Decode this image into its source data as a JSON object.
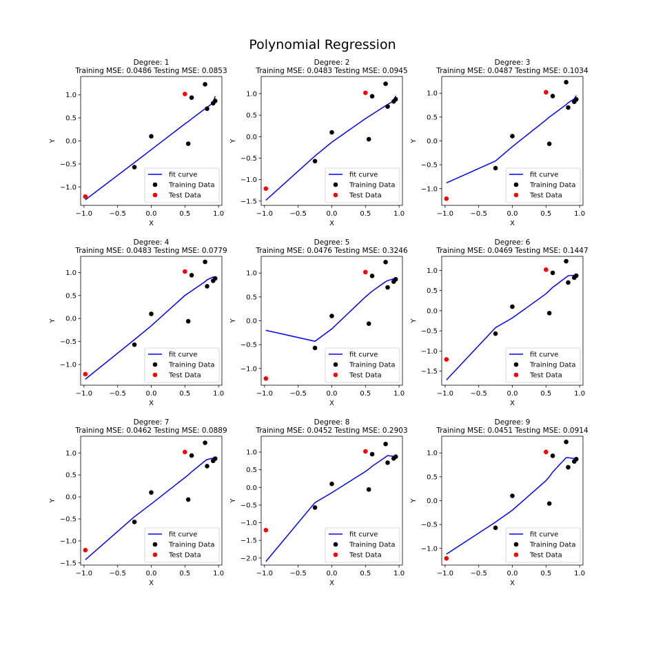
{
  "figure": {
    "title": "Polynomial Regression"
  },
  "chart_data": [
    {
      "type": "scatter",
      "degree_label": "Degree: 1",
      "mse_label": "Training MSE: 0.0486 Testing MSE: 0.0853",
      "xlabel": "X",
      "ylabel": "Y",
      "xlim": [
        -1.05,
        1.05
      ],
      "ylim": [
        -1.4,
        1.4
      ],
      "xticks": [
        -1.0,
        -0.5,
        0.0,
        0.5,
        1.0
      ],
      "yticks": [
        -1.0,
        -0.5,
        0.0,
        0.5,
        1.0
      ],
      "fit_curve": {
        "x": [
          -0.98,
          -0.25,
          0.0,
          0.5,
          0.55,
          0.6,
          0.8,
          0.83,
          0.92,
          0.95
        ],
        "y": [
          -1.28,
          -0.47,
          -0.19,
          0.37,
          0.42,
          0.48,
          0.7,
          0.73,
          0.83,
          0.97
        ]
      }
    },
    {
      "type": "scatter",
      "degree_label": "Degree: 2",
      "mse_label": "Training MSE: 0.0483 Testing MSE: 0.0945",
      "xlabel": "X",
      "ylabel": "Y",
      "xlim": [
        -1.05,
        1.05
      ],
      "ylim": [
        -1.6,
        1.4
      ],
      "xticks": [
        -1.0,
        -0.5,
        0.0,
        0.5,
        1.0
      ],
      "yticks": [
        -1.5,
        -1.0,
        -0.5,
        0.0,
        0.5,
        1.0
      ],
      "fit_curve": {
        "x": [
          -0.98,
          -0.25,
          0.0,
          0.5,
          0.55,
          0.6,
          0.8,
          0.83,
          0.92,
          0.95
        ],
        "y": [
          -1.48,
          -0.45,
          -0.13,
          0.42,
          0.47,
          0.52,
          0.72,
          0.75,
          0.83,
          0.95
        ]
      }
    },
    {
      "type": "scatter",
      "degree_label": "Degree: 3",
      "mse_label": "Training MSE: 0.0487 Testing MSE: 0.1034",
      "xlabel": "X",
      "ylabel": "Y",
      "xlim": [
        -1.05,
        1.05
      ],
      "ylim": [
        -1.35,
        1.35
      ],
      "xticks": [
        -1.0,
        -0.5,
        0.0,
        0.5,
        1.0
      ],
      "yticks": [
        -1.0,
        -0.5,
        0.0,
        0.5,
        1.0
      ],
      "fit_curve": {
        "x": [
          -0.98,
          -0.25,
          0.0,
          0.5,
          0.55,
          0.6,
          0.8,
          0.83,
          0.92,
          0.95
        ],
        "y": [
          -0.88,
          -0.42,
          -0.12,
          0.44,
          0.5,
          0.55,
          0.76,
          0.8,
          0.88,
          0.95
        ]
      }
    },
    {
      "type": "scatter",
      "degree_label": "Degree: 4",
      "mse_label": "Training MSE: 0.0483 Testing MSE: 0.0779",
      "xlabel": "X",
      "ylabel": "Y",
      "xlim": [
        -1.05,
        1.05
      ],
      "ylim": [
        -1.45,
        1.35
      ],
      "xticks": [
        -1.0,
        -0.5,
        0.0,
        0.5,
        1.0
      ],
      "yticks": [
        -1.0,
        -0.5,
        0.0,
        0.5,
        1.0
      ],
      "fit_curve": {
        "x": [
          -0.98,
          -0.25,
          0.0,
          0.5,
          0.55,
          0.6,
          0.8,
          0.83,
          0.92,
          0.95
        ],
        "y": [
          -1.32,
          -0.46,
          -0.16,
          0.5,
          0.55,
          0.6,
          0.8,
          0.84,
          0.9,
          0.9
        ]
      }
    },
    {
      "type": "scatter",
      "degree_label": "Degree: 5",
      "mse_label": "Training MSE: 0.0476 Testing MSE: 0.3246",
      "xlabel": "X",
      "ylabel": "Y",
      "xlim": [
        -1.05,
        1.05
      ],
      "ylim": [
        -1.35,
        1.35
      ],
      "xticks": [
        -1.0,
        -0.5,
        0.0,
        0.5,
        1.0
      ],
      "yticks": [
        -1.0,
        -0.5,
        0.0,
        0.5,
        1.0
      ],
      "fit_curve": {
        "x": [
          -0.98,
          -0.25,
          0.0,
          0.5,
          0.55,
          0.6,
          0.8,
          0.83,
          0.92,
          0.95
        ],
        "y": [
          -0.2,
          -0.43,
          -0.17,
          0.5,
          0.56,
          0.62,
          0.82,
          0.84,
          0.88,
          0.88
        ]
      }
    },
    {
      "type": "scatter",
      "degree_label": "Degree: 6",
      "mse_label": "Training MSE: 0.0469 Testing MSE: 0.1447",
      "xlabel": "X",
      "ylabel": "Y",
      "xlim": [
        -1.05,
        1.05
      ],
      "ylim": [
        -1.85,
        1.35
      ],
      "xticks": [
        -1.0,
        -0.5,
        0.0,
        0.5,
        1.0
      ],
      "yticks": [
        -1.5,
        -1.0,
        -0.5,
        0.0,
        0.5,
        1.0
      ],
      "fit_curve": {
        "x": [
          -0.98,
          -0.25,
          0.0,
          0.5,
          0.55,
          0.6,
          0.8,
          0.83,
          0.92,
          0.95
        ],
        "y": [
          -1.72,
          -0.42,
          -0.18,
          0.42,
          0.5,
          0.58,
          0.83,
          0.87,
          0.88,
          0.86
        ]
      }
    },
    {
      "type": "scatter",
      "degree_label": "Degree: 7",
      "mse_label": "Training MSE: 0.0462 Testing MSE: 0.0889",
      "xlabel": "X",
      "ylabel": "Y",
      "xlim": [
        -1.05,
        1.05
      ],
      "ylim": [
        -1.55,
        1.38
      ],
      "xticks": [
        -1.0,
        -0.5,
        0.0,
        0.5,
        1.0
      ],
      "yticks": [
        -1.5,
        -1.0,
        -0.5,
        0.0,
        0.5,
        1.0
      ],
      "fit_curve": {
        "x": [
          -0.98,
          -0.25,
          0.0,
          0.5,
          0.55,
          0.6,
          0.8,
          0.83,
          0.92,
          0.95
        ],
        "y": [
          -1.43,
          -0.45,
          -0.16,
          0.44,
          0.5,
          0.57,
          0.82,
          0.85,
          0.88,
          0.88
        ]
      }
    },
    {
      "type": "scatter",
      "degree_label": "Degree: 8",
      "mse_label": "Training MSE: 0.0452 Testing MSE: 0.2903",
      "xlabel": "X",
      "ylabel": "Y",
      "xlim": [
        -1.05,
        1.05
      ],
      "ylim": [
        -2.2,
        1.45
      ],
      "xticks": [
        -1.0,
        -0.5,
        0.0,
        0.5,
        1.0
      ],
      "yticks": [
        -2.0,
        -1.5,
        -1.0,
        -0.5,
        0.0,
        0.5,
        1.0
      ],
      "fit_curve": {
        "x": [
          -0.98,
          -0.25,
          0.0,
          0.5,
          0.55,
          0.6,
          0.8,
          0.83,
          0.92,
          0.95
        ],
        "y": [
          -2.1,
          -0.43,
          -0.15,
          0.45,
          0.52,
          0.6,
          0.86,
          0.9,
          0.88,
          0.88
        ]
      }
    },
    {
      "type": "scatter",
      "degree_label": "Degree: 9",
      "mse_label": "Training MSE: 0.0451 Testing MSE: 0.0914",
      "xlabel": "X",
      "ylabel": "Y",
      "xlim": [
        -1.05,
        1.05
      ],
      "ylim": [
        -1.35,
        1.35
      ],
      "xticks": [
        -1.0,
        -0.5,
        0.0,
        0.5,
        1.0
      ],
      "yticks": [
        -1.0,
        -0.5,
        0.0,
        0.5,
        1.0
      ],
      "fit_curve": {
        "x": [
          -0.98,
          -0.25,
          0.0,
          0.5,
          0.55,
          0.6,
          0.8,
          0.83,
          0.92,
          0.95
        ],
        "y": [
          -1.12,
          -0.45,
          -0.2,
          0.42,
          0.5,
          0.6,
          0.9,
          0.9,
          0.88,
          0.88
        ]
      }
    }
  ],
  "shared": {
    "training_data": {
      "x": [
        -0.25,
        0.0,
        0.55,
        0.6,
        0.8,
        0.83,
        0.92,
        0.95
      ],
      "y": [
        -0.57,
        0.1,
        -0.06,
        0.94,
        1.23,
        0.7,
        0.82,
        0.87
      ]
    },
    "test_data": {
      "x": [
        -0.98,
        0.5
      ],
      "y": [
        -1.21,
        1.02
      ]
    },
    "legend": {
      "fit_label": "fit curve",
      "train_label": "Training Data",
      "test_label": "Test Data",
      "placement": "lower right"
    },
    "colors": {
      "fit": "#0000ff",
      "train": "#000000",
      "test": "#ff0000"
    }
  }
}
